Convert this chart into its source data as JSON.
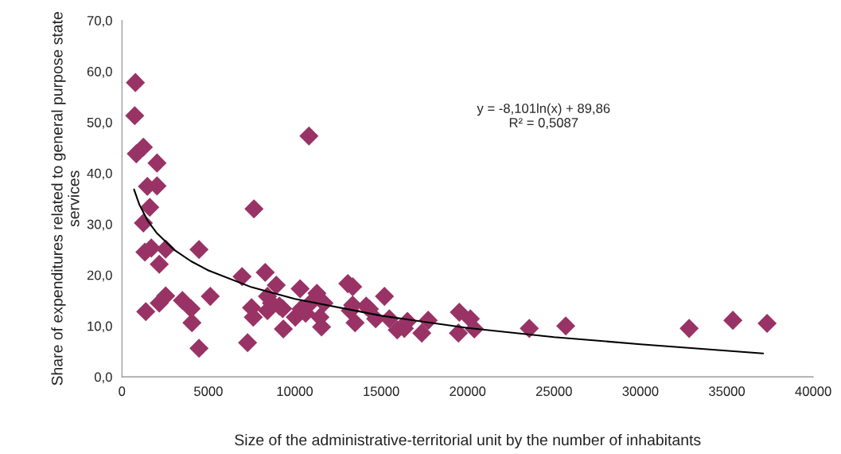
{
  "chart_data": {
    "type": "scatter",
    "xlabel": "Size of the administrative-territorial unit by the number of inhabitants",
    "ylabel": "Share of expenditures related to general purpose state services",
    "annotations": [
      "y = -8,101ln(x) + 89,86\nR² = 0,5087"
    ],
    "xlim": [
      0,
      40000
    ],
    "xticks": [
      0,
      5000,
      10000,
      15000,
      20000,
      25000,
      30000,
      35000,
      40000
    ],
    "ylim": [
      0,
      70
    ],
    "yticks": [
      {
        "value": 0,
        "label": "0,0"
      },
      {
        "value": 10,
        "label": "10,0"
      },
      {
        "value": 20,
        "label": "20,0"
      },
      {
        "value": 30,
        "label": "30,0"
      },
      {
        "value": 40,
        "label": "40,0"
      },
      {
        "value": 50,
        "label": "50,0"
      },
      {
        "value": 60,
        "label": "60,0"
      },
      {
        "value": 70,
        "label": "70,0"
      }
    ],
    "grid": false,
    "legend": false,
    "series": [
      {
        "marker": "diamond",
        "color": "#993366",
        "x": [
          780,
          740,
          830,
          1240,
          2030,
          1470,
          2030,
          1610,
          1240,
          1330,
          1700,
          2530,
          2160,
          1380,
          2160,
          2530,
          3500,
          4000,
          4050,
          4460,
          4460,
          5110,
          6950,
          7270,
          7640,
          7500,
          7600,
          8290,
          8420,
          8420,
          8650,
          8930,
          9340,
          9110,
          9300,
          10310,
          10030,
          10360,
          10630,
          10820,
          11000,
          11280,
          11460,
          11550,
          11690,
          13070,
          13350,
          13210,
          13490,
          13350,
          14130,
          14320,
          14680,
          15190,
          15470,
          15930,
          16340,
          16520,
          17350,
          17720,
          19520,
          19470,
          20160,
          20390,
          23570,
          25680,
          32820,
          35350,
          37330
        ],
        "values": [
          57.8,
          51.3,
          43.8,
          45.1,
          42.0,
          37.4,
          37.5,
          33.3,
          30.2,
          24.5,
          25.3,
          25.1,
          22.1,
          12.8,
          14.5,
          15.9,
          15.0,
          13.4,
          10.6,
          25.0,
          5.6,
          15.8,
          19.7,
          6.7,
          33.0,
          13.6,
          11.7,
          20.5,
          15.8,
          13.0,
          14.5,
          18.0,
          9.4,
          13.9,
          13.4,
          17.3,
          11.7,
          13.3,
          12.5,
          47.3,
          14.8,
          16.4,
          11.7,
          9.8,
          14.5,
          18.3,
          17.7,
          13.0,
          10.6,
          14.1,
          13.9,
          13.3,
          11.4,
          15.8,
          11.4,
          9.2,
          9.5,
          10.9,
          8.6,
          11.1,
          12.7,
          8.6,
          11.4,
          9.4,
          9.5,
          10.0,
          9.5,
          11.1,
          10.5
        ]
      },
      {
        "type": "line",
        "color": "#000000",
        "marker": "none",
        "line_style": "solid",
        "x": [
          700,
          1000,
          1500,
          2000,
          3000,
          4000,
          5000,
          7500,
          10000,
          15000,
          20000,
          25000,
          30000,
          37100
        ],
        "values": [
          36.8,
          33.9,
          30.6,
          28.3,
          25.0,
          22.7,
          20.9,
          17.6,
          15.3,
          12.0,
          9.6,
          7.8,
          6.4,
          4.6
        ]
      }
    ]
  }
}
